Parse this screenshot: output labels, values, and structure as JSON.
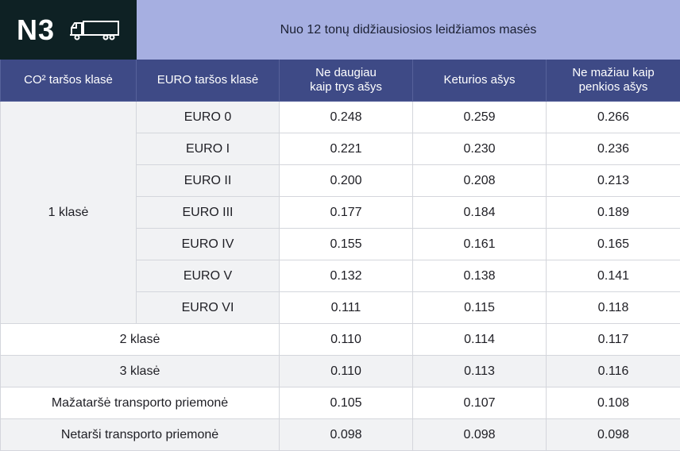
{
  "badge": {
    "code": "N3",
    "icon": "truck-icon"
  },
  "header": {
    "title": "Nuo 12 tonų didžiausiosios leidžiamos masės",
    "columns": [
      "CO² taršos klasė",
      "EURO taršos klasė",
      "Ne daugiau kaip trys ašys",
      "Keturios ašys",
      "Ne mažiau kaip penkios ašys"
    ]
  },
  "class1": {
    "label": "1 klasė",
    "rows": [
      {
        "euro": "EURO 0",
        "v": [
          "0.248",
          "0.259",
          "0.266"
        ]
      },
      {
        "euro": "EURO I",
        "v": [
          "0.221",
          "0.230",
          "0.236"
        ]
      },
      {
        "euro": "EURO II",
        "v": [
          "0.200",
          "0.208",
          "0.213"
        ]
      },
      {
        "euro": "EURO III",
        "v": [
          "0.177",
          "0.184",
          "0.189"
        ]
      },
      {
        "euro": "EURO IV",
        "v": [
          "0.155",
          "0.161",
          "0.165"
        ]
      },
      {
        "euro": "EURO V",
        "v": [
          "0.132",
          "0.138",
          "0.141"
        ]
      },
      {
        "euro": "EURO VI",
        "v": [
          "0.111",
          "0.115",
          "0.118"
        ]
      }
    ]
  },
  "other_rows": [
    {
      "label": "2 klasė",
      "v": [
        "0.110",
        "0.114",
        "0.117"
      ]
    },
    {
      "label": "3 klasė",
      "v": [
        "0.110",
        "0.113",
        "0.116"
      ]
    },
    {
      "label": "Mažataršė transporto priemonė",
      "v": [
        "0.105",
        "0.107",
        "0.108"
      ]
    },
    {
      "label": "Netarši transporto priemonė",
      "v": [
        "0.098",
        "0.098",
        "0.098"
      ]
    }
  ],
  "colors": {
    "dark": "#0e2124",
    "header_light": "#a6afe1",
    "header_dark": "#3e4a86",
    "row_gray": "#f1f2f4"
  }
}
